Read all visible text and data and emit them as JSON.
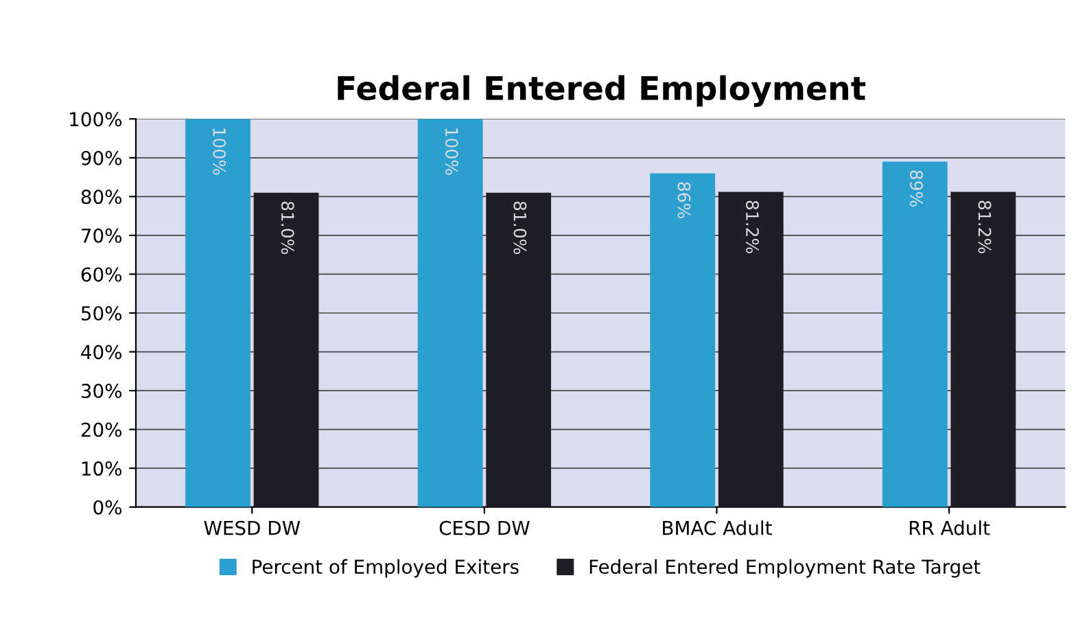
{
  "chart_data": {
    "type": "bar",
    "title": "Federal Entered Employment",
    "categories": [
      "WESD DW",
      "CESD DW",
      "BMAC Adult",
      "RR Adult"
    ],
    "series": [
      {
        "name": "Percent of Employed Exiters",
        "color": "#2b9fd0",
        "values": [
          100,
          100,
          86,
          89
        ],
        "value_labels": [
          "100%",
          "100%",
          "86%",
          "89%"
        ]
      },
      {
        "name": "Federal Entered Employment Rate Target",
        "color": "#1e1e24",
        "values": [
          81.0,
          81.0,
          81.2,
          81.2
        ],
        "value_labels": [
          "81.0%",
          "81.0%",
          "81.2%",
          "81.2%"
        ]
      }
    ],
    "ylim": [
      0,
      100
    ],
    "yticks": [
      {
        "value": 0,
        "label": "0%"
      },
      {
        "value": 10,
        "label": "10%"
      },
      {
        "value": 20,
        "label": "20%"
      },
      {
        "value": 30,
        "label": "30%"
      },
      {
        "value": 40,
        "label": "40%"
      },
      {
        "value": 50,
        "label": "50%"
      },
      {
        "value": 60,
        "label": "60%"
      },
      {
        "value": 70,
        "label": "70%"
      },
      {
        "value": 80,
        "label": "80%"
      },
      {
        "value": 90,
        "label": "90%"
      },
      {
        "value": 100,
        "label": "100%"
      }
    ],
    "grid": "y",
    "legend": "bottom"
  }
}
